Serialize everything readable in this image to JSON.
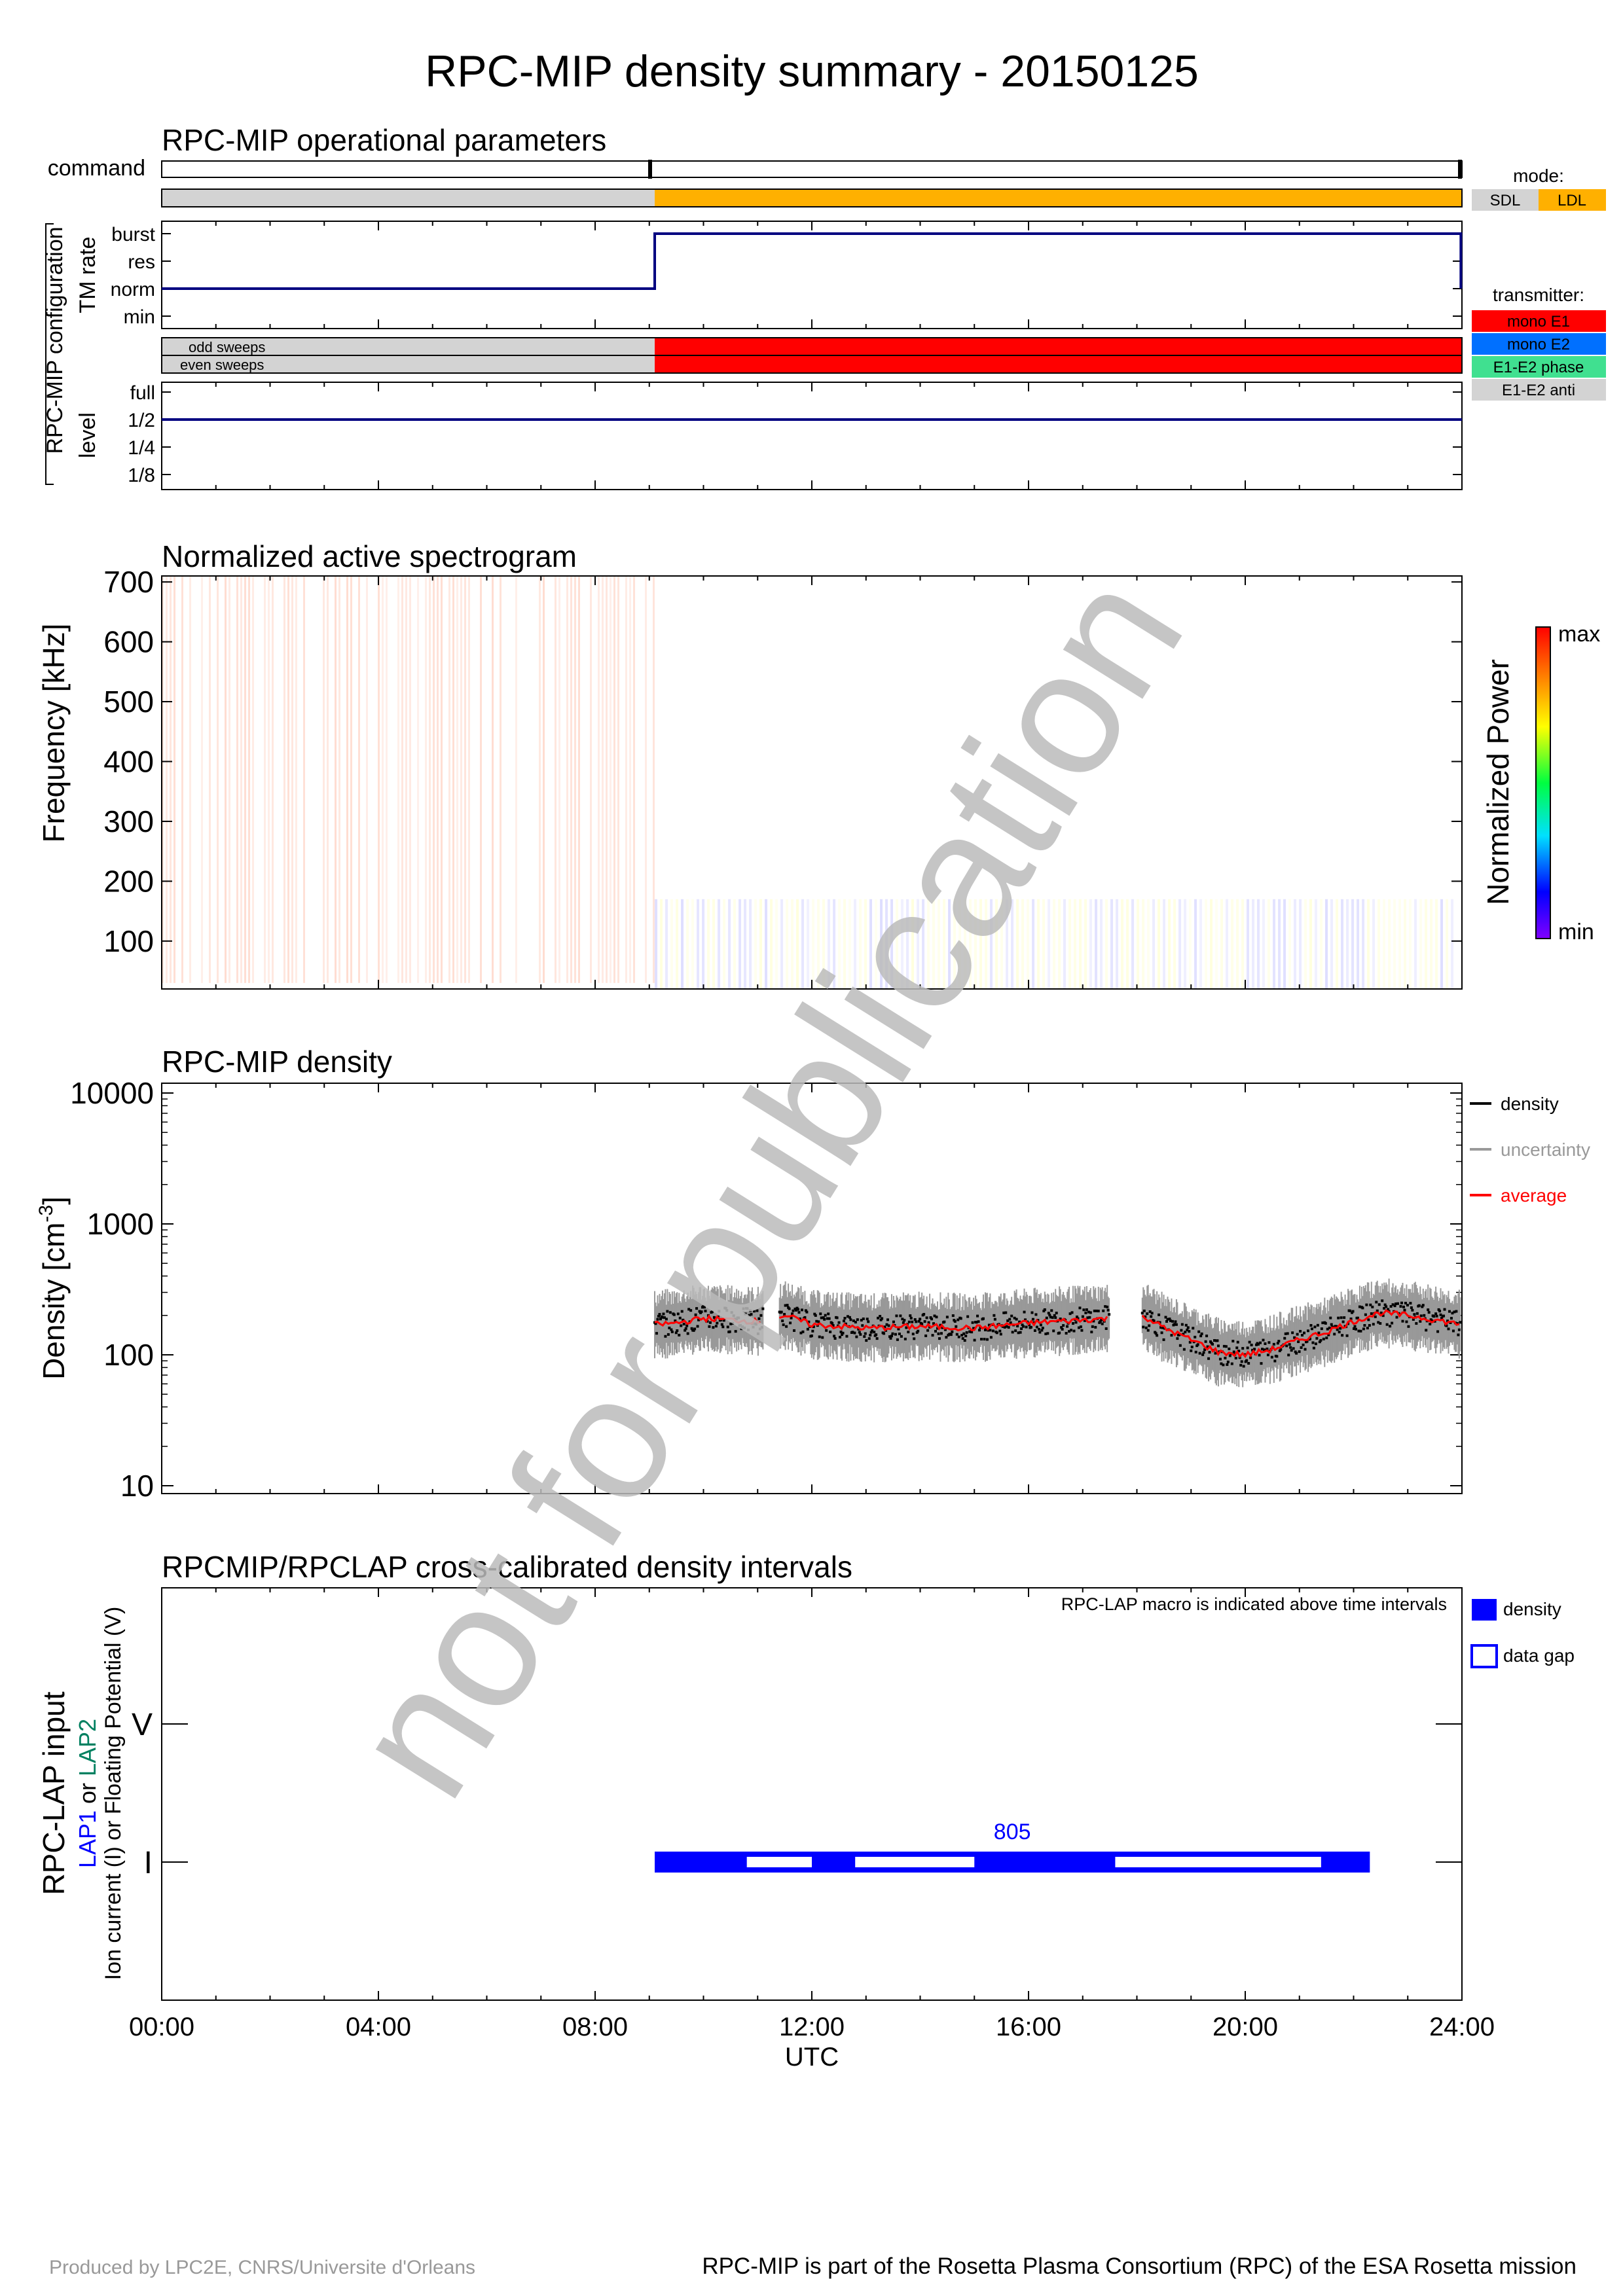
{
  "title": "RPC-MIP density summary - 20150125",
  "watermark": "not for publication",
  "colors": {
    "sdl": "#d3d3d3",
    "ldl": "#ffb000",
    "mono_e1": "#ff0000",
    "mono_e2": "#0070ff",
    "e1e2_phase": "#40e090",
    "e1e2_anti": "#d3d3d3",
    "navy": "#000080",
    "lap_blue": "#0000ff",
    "lap2_green": "#008060",
    "density": "#000000",
    "uncertainty": "#999999",
    "average": "#ff0000",
    "watermark": "#bbbbbb"
  },
  "x_axis": {
    "ticks": [
      "00:00",
      "04:00",
      "08:00",
      "12:00",
      "16:00",
      "20:00",
      "24:00"
    ],
    "label": "UTC",
    "range_hours": [
      0,
      24
    ]
  },
  "ops": {
    "title": "RPC-MIP operational parameters",
    "command_label": "command",
    "config_label": "RPC-MIP configuration",
    "tm_rate_label": "TM rate",
    "level_label": "level",
    "tm_levels": [
      "burst",
      "res",
      "norm",
      "min"
    ],
    "level_levels": [
      "full",
      "1/2",
      "1/4",
      "1/8"
    ],
    "odd_sweeps": "odd sweeps",
    "even_sweeps": "even sweeps",
    "mode_legend_title": "mode:",
    "modes": [
      "SDL",
      "LDL"
    ],
    "transmitter_legend_title": "transmitter:",
    "transmitters": [
      "mono E1",
      "mono E2",
      "E1-E2 phase",
      "E1-E2 anti"
    ]
  },
  "spectrogram": {
    "title": "Normalized active spectrogram",
    "ylabel": "Frequency [kHz]",
    "yticks": [
      "700",
      "600",
      "500",
      "400",
      "300",
      "200",
      "100"
    ],
    "colorbar_label": "Normalized Power",
    "colorbar_max": "max",
    "colorbar_min": "min"
  },
  "density": {
    "title": "RPC-MIP density",
    "ylabel": "Density [cm",
    "ylabel_exp": "-3",
    "ylabel_end": "]",
    "yticks": [
      "10000",
      "1000",
      "100",
      "10"
    ],
    "legend": [
      "density",
      "uncertainty",
      "average"
    ]
  },
  "lap": {
    "title": "RPCMIP/RPCLAP cross-calibrated density intervals",
    "note": "RPC-LAP macro is indicated above time intervals",
    "ylabel_main": "RPC-LAP input",
    "ylabel_lap1": "LAP1",
    "ylabel_or": " or ",
    "ylabel_lap2": "LAP2",
    "ylabel_sub": "Ion current (I) or Floating Potential (V)",
    "yticks": [
      "V",
      "I"
    ],
    "macro": "805",
    "legend": [
      "density",
      "data gap"
    ]
  },
  "footer": {
    "left": "Produced by LPC2E, CNRS/Universite d'Orleans",
    "right": "RPC-MIP is part of the Rosetta Plasma Consortium (RPC) of the ESA Rosetta mission"
  },
  "chart_data": [
    {
      "type": "step",
      "name": "mode",
      "segments": [
        {
          "from_h": 0,
          "to_h": 9.1,
          "mode": "SDL"
        },
        {
          "from_h": 9.1,
          "to_h": 24,
          "mode": "LDL"
        }
      ],
      "tm_rate": [
        {
          "from_h": 0,
          "to_h": 9.1,
          "value": "norm"
        },
        {
          "from_h": 9.1,
          "to_h": 23.98,
          "value": "burst"
        }
      ],
      "transmitter": [
        {
          "from_h": 9.1,
          "to_h": 24,
          "value": "mono E1"
        }
      ],
      "level": [
        {
          "from_h": 0,
          "to_h": 24,
          "value": "1/2"
        }
      ]
    },
    {
      "type": "heatmap",
      "name": "Normalized active spectrogram",
      "ylabel": "Frequency [kHz]",
      "ylim": [
        20,
        710
      ],
      "segments": [
        {
          "from_h": 0,
          "to_h": 9.1,
          "fmax_khz": 710,
          "peak_bands_khz": [
            100,
            150,
            250
          ]
        },
        {
          "from_h": 9.1,
          "to_h": 24,
          "fmax_khz": 170,
          "peak_bands_khz": [
            130,
            150
          ]
        }
      ]
    },
    {
      "type": "scatter",
      "name": "RPC-MIP density",
      "yscale": "log",
      "ylim": [
        10,
        10000
      ],
      "xlim": [
        0,
        24
      ],
      "gaps_h": [
        [
          11.1,
          11.4
        ],
        [
          17.5,
          18.1
        ]
      ],
      "series": [
        {
          "name": "average",
          "x": [
            9.1,
            9.5,
            10.0,
            10.5,
            11.0,
            11.5,
            12.0,
            13.0,
            14.0,
            15.0,
            16.0,
            17.0,
            17.5,
            18.1,
            18.5,
            19.0,
            19.5,
            20.0,
            20.5,
            21.0,
            21.5,
            22.0,
            22.5,
            23.0,
            23.5,
            24.0
          ],
          "y": [
            170,
            175,
            190,
            185,
            180,
            200,
            170,
            160,
            165,
            160,
            175,
            185,
            190,
            200,
            160,
            130,
            105,
            100,
            110,
            130,
            150,
            180,
            210,
            200,
            185,
            170
          ]
        }
      ]
    },
    {
      "type": "timeline",
      "name": "RPCMIP/RPCLAP cross-calibrated density intervals",
      "macro": "805",
      "row": "I",
      "density_h": [
        9.1,
        22.3
      ],
      "data_gaps_h": [
        [
          10.8,
          12.0
        ],
        [
          12.8,
          15.0
        ],
        [
          17.6,
          21.4
        ]
      ]
    }
  ]
}
